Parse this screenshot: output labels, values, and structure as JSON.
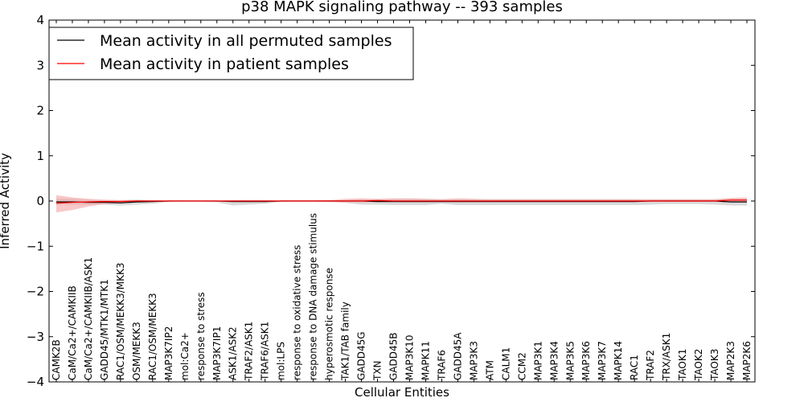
{
  "chart_data": {
    "type": "line",
    "title": "p38 MAPK signaling pathway -- 393 samples",
    "xlabel": "Cellular Entities",
    "ylabel": "Inferred Activity",
    "ylim": [
      -4,
      4
    ],
    "yticks": [
      4,
      3,
      2,
      1,
      0,
      -1,
      -2,
      -3,
      -4
    ],
    "ytick_labels": [
      "4",
      "3",
      "2",
      "1",
      "0",
      "−1",
      "−2",
      "−3",
      "−4"
    ],
    "grid": false,
    "legend_position": "top-left",
    "categories": [
      "CAMK2B",
      "CaM/Ca2+/CAMKIIB",
      "CaM/Ca2+/CAMKIIB/ASK1",
      "GADD45/MTK1/MTK1",
      "RAC1/OSM/MEKK3/MKK3",
      "OSM/MEKK3",
      "RAC1/OSM/MEKK3",
      "MAP3K7IP2",
      "mol:Ca2+",
      "response to stress",
      "MAP3K7IP1",
      "ASK1/ASK2",
      "TRAF2/ASK1",
      "TRAF6/ASK1",
      "mol:LPS",
      "response to oxidative stress",
      "response to DNA damage stimulus",
      "hyperosmotic response",
      "TAK1/TAB family",
      "GADD45G",
      "TXN",
      "GADD45B",
      "MAP3K10",
      "MAPK11",
      "TRAF6",
      "GADD45A",
      "MAP3K3",
      "ATM",
      "CALM1",
      "CCM2",
      "MAP3K1",
      "MAP3K4",
      "MAP3K5",
      "MAP3K6",
      "MAP3K7",
      "MAPK14",
      "RAC1",
      "TRAF2",
      "TRX/ASK1",
      "TAOK1",
      "TAOK2",
      "TAOK3",
      "MAP2K3",
      "MAP2K6"
    ],
    "series": [
      {
        "name": "Mean activity in all permuted samples",
        "color": "#000000",
        "band_color": "#bbbbbb",
        "values": [
          -0.02,
          -0.02,
          -0.03,
          -0.03,
          -0.04,
          -0.02,
          -0.01,
          0.0,
          0.0,
          0.0,
          0.0,
          -0.01,
          -0.01,
          -0.01,
          0.0,
          0.0,
          0.0,
          0.0,
          0.0,
          0.0,
          -0.01,
          -0.01,
          -0.01,
          -0.01,
          -0.01,
          -0.01,
          -0.01,
          -0.01,
          -0.01,
          -0.01,
          -0.01,
          -0.01,
          -0.01,
          -0.01,
          -0.01,
          -0.01,
          -0.01,
          0.0,
          0.0,
          0.0,
          0.0,
          0.0,
          -0.02,
          -0.02
        ],
        "band_upper": [
          0.06,
          0.05,
          0.03,
          0.02,
          0.02,
          0.03,
          0.02,
          0.01,
          0.0,
          0.0,
          0.01,
          0.02,
          0.02,
          0.02,
          0.01,
          0.01,
          0.01,
          0.01,
          0.02,
          0.04,
          0.03,
          0.05,
          0.05,
          0.05,
          0.04,
          0.04,
          0.04,
          0.04,
          0.04,
          0.04,
          0.04,
          0.04,
          0.04,
          0.04,
          0.04,
          0.04,
          0.04,
          0.03,
          0.03,
          0.03,
          0.03,
          0.04,
          0.05,
          0.05
        ],
        "band_lower": [
          -0.08,
          -0.08,
          -0.08,
          -0.08,
          -0.1,
          -0.08,
          -0.06,
          -0.02,
          -0.01,
          -0.01,
          -0.03,
          -0.1,
          -0.08,
          -0.06,
          -0.02,
          -0.01,
          -0.01,
          -0.02,
          -0.04,
          -0.08,
          -0.08,
          -0.09,
          -0.09,
          -0.09,
          -0.06,
          -0.09,
          -0.09,
          -0.09,
          -0.09,
          -0.09,
          -0.09,
          -0.09,
          -0.09,
          -0.09,
          -0.09,
          -0.09,
          -0.09,
          -0.08,
          -0.07,
          -0.07,
          -0.07,
          -0.08,
          -0.1,
          -0.1
        ]
      },
      {
        "name": "Mean activity in patient samples",
        "color": "#ff0000",
        "band_color": "#f5a3a3",
        "values": [
          -0.05,
          -0.03,
          -0.02,
          -0.01,
          -0.01,
          0.0,
          0.0,
          0.0,
          0.0,
          0.0,
          0.0,
          0.0,
          0.0,
          0.0,
          0.0,
          0.0,
          0.0,
          0.0,
          0.0,
          0.0,
          0.01,
          0.0,
          0.0,
          0.0,
          0.0,
          0.0,
          0.0,
          0.0,
          0.0,
          0.0,
          0.0,
          0.0,
          0.0,
          0.0,
          0.0,
          0.0,
          0.0,
          0.0,
          0.0,
          0.0,
          0.0,
          0.0,
          0.02,
          0.02
        ],
        "band_upper": [
          0.13,
          0.08,
          0.05,
          0.03,
          0.02,
          0.02,
          0.01,
          0.01,
          0.0,
          0.0,
          0.0,
          0.01,
          0.01,
          0.01,
          0.01,
          0.01,
          0.01,
          0.02,
          0.05,
          0.06,
          0.05,
          0.06,
          0.06,
          0.05,
          0.04,
          0.06,
          0.05,
          0.04,
          0.04,
          0.04,
          0.04,
          0.04,
          0.04,
          0.04,
          0.04,
          0.04,
          0.04,
          0.04,
          0.04,
          0.04,
          0.04,
          0.04,
          0.07,
          0.08
        ],
        "band_lower": [
          -0.25,
          -0.2,
          -0.12,
          -0.07,
          -0.04,
          -0.02,
          -0.01,
          -0.01,
          0.0,
          0.0,
          0.0,
          -0.01,
          -0.01,
          -0.01,
          -0.01,
          -0.01,
          -0.01,
          -0.02,
          -0.03,
          -0.03,
          -0.02,
          -0.02,
          -0.02,
          -0.02,
          -0.02,
          -0.02,
          -0.02,
          -0.02,
          -0.02,
          -0.02,
          -0.02,
          -0.02,
          -0.02,
          -0.02,
          -0.02,
          -0.02,
          -0.02,
          -0.02,
          -0.02,
          -0.02,
          -0.02,
          -0.02,
          -0.03,
          -0.03
        ]
      }
    ]
  }
}
